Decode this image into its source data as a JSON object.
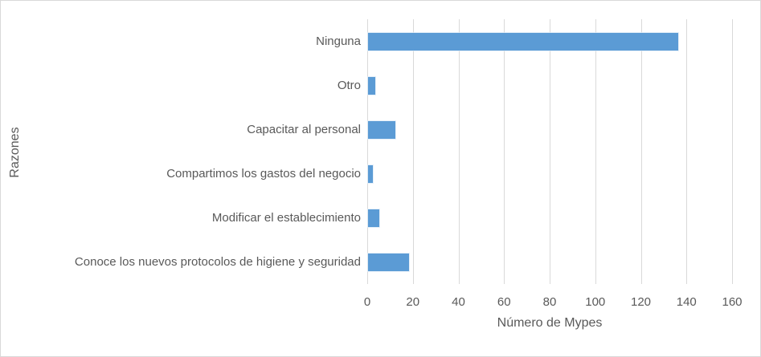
{
  "chart_data": {
    "type": "bar",
    "orientation": "horizontal",
    "title": "",
    "categories": [
      "Ninguna",
      "Otro",
      "Capacitar al personal",
      "Compartimos los gastos del negocio",
      "Modificar el establecimiento",
      "Conoce los nuevos protocolos de higiene y seguridad"
    ],
    "values": [
      136,
      3,
      12,
      2,
      5,
      18
    ],
    "xlabel": "Número de Mypes",
    "ylabel": "Razones",
    "xlim": [
      0,
      160
    ],
    "xticks": [
      0,
      20,
      40,
      60,
      80,
      100,
      120,
      140,
      160
    ],
    "grid": true,
    "legend_position": "none"
  },
  "colors": {
    "bar": "#5b9bd5",
    "gridline": "#d9d9d9",
    "text": "#595959",
    "frame": "#d9d9d9",
    "background": "#ffffff"
  }
}
